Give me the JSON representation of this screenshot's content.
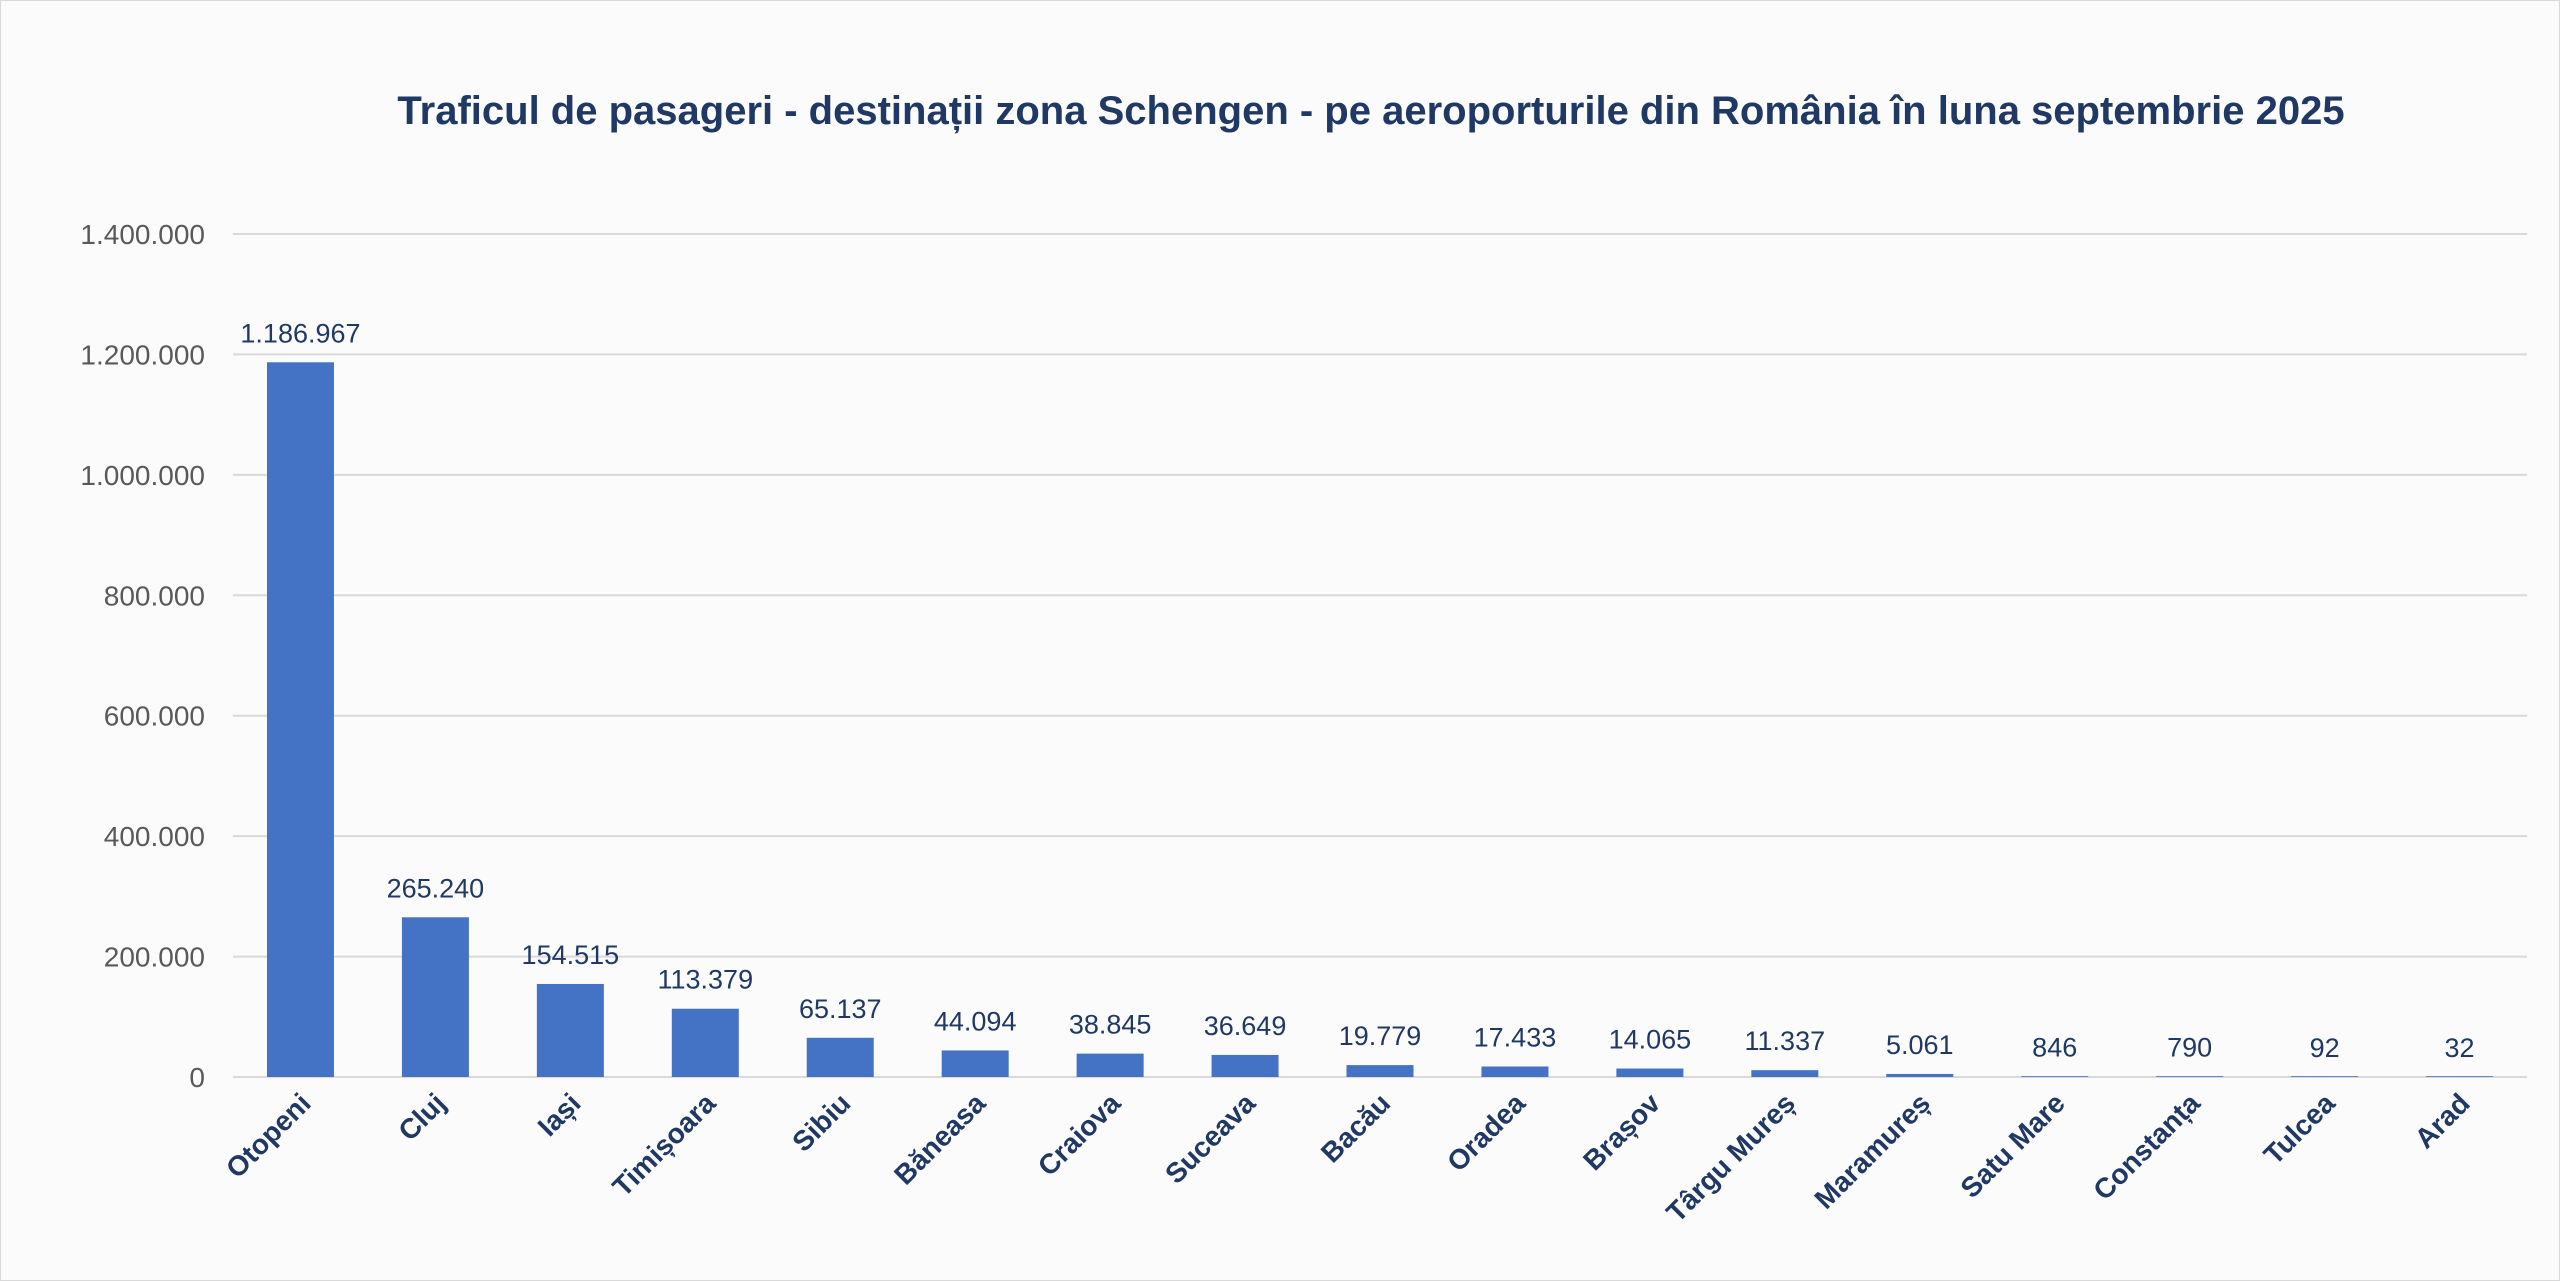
{
  "chart_data": {
    "type": "bar",
    "title": "Traficul de pasageri - destinații zona Schengen - pe aeroporturile din România în luna septembrie 2025",
    "xlabel": "",
    "ylabel": "",
    "categories": [
      "Otopeni",
      "Cluj",
      "Iași",
      "Timișoara",
      "Sibiu",
      "Băneasa",
      "Craiova",
      "Suceava",
      "Bacău",
      "Oradea",
      "Brașov",
      "Târgu Mureș",
      "Maramureș",
      "Satu Mare",
      "Constanța",
      "Tulcea",
      "Arad"
    ],
    "values": [
      1186967,
      265240,
      154515,
      113379,
      65137,
      44094,
      38845,
      36649,
      19779,
      17433,
      14065,
      11337,
      5061,
      846,
      790,
      92,
      32
    ],
    "data_labels": [
      "1.186.967",
      "265.240",
      "154.515",
      "113.379",
      "65.137",
      "44.094",
      "38.845",
      "36.649",
      "19.779",
      "17.433",
      "14.065",
      "11.337",
      "5.061",
      "846",
      "790",
      "92",
      "32"
    ],
    "ylim": [
      0,
      1400000
    ],
    "y_ticks": [
      0,
      200000,
      400000,
      600000,
      800000,
      1000000,
      1200000,
      1400000
    ],
    "y_tick_labels": [
      "0",
      "200.000",
      "400.000",
      "600.000",
      "800.000",
      "1.000.000",
      "1.200.000",
      "1.400.000"
    ],
    "grid": true,
    "legend": "none",
    "bar_color": "#4472c4",
    "text_color": "#1f3864",
    "axis_text_color": "#595959",
    "grid_color": "#d9d9d9",
    "background_color": "#fbfbfb"
  }
}
